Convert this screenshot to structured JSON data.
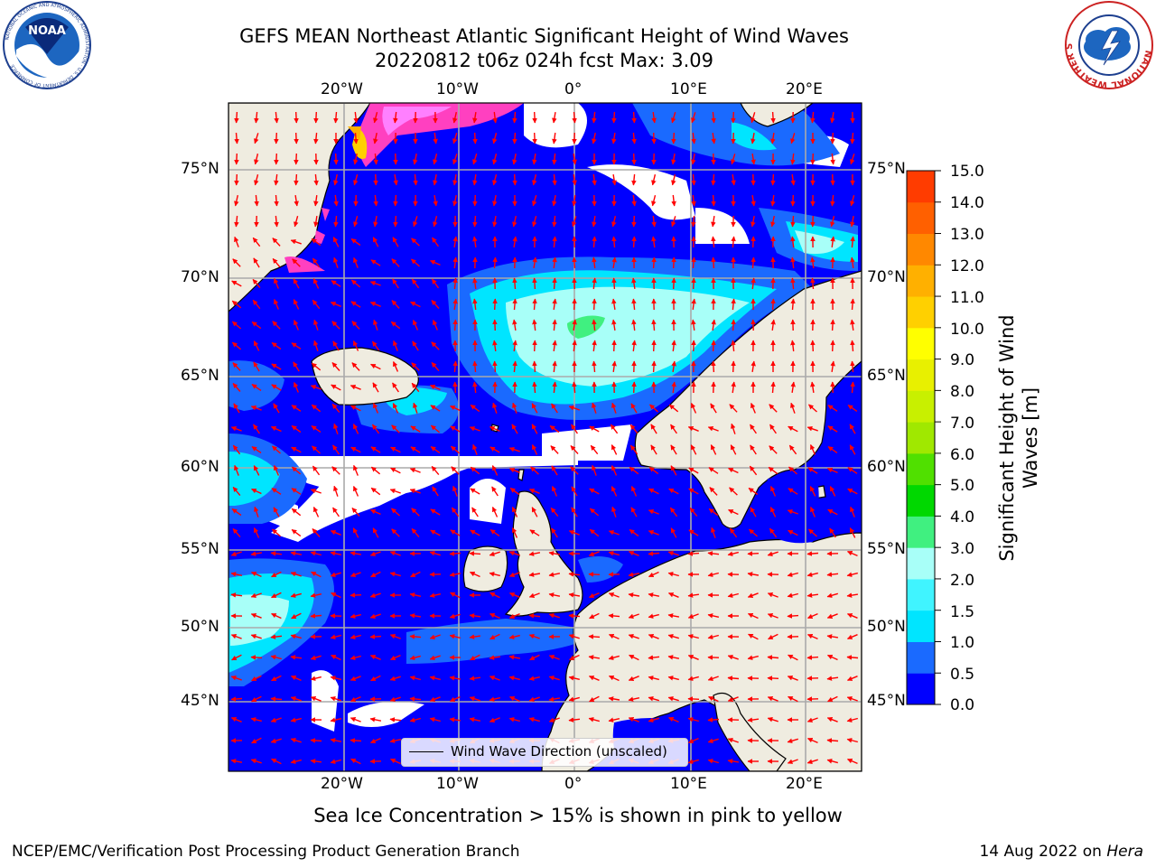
{
  "title": {
    "line1": "GEFS MEAN Northeast Atlantic Significant Height of Wind Waves",
    "line2": "20220812 t06z 024h fcst   Max: 3.09"
  },
  "logos": {
    "noara_text": "NOAA",
    "noaa_ring_text": "NATIONAL OCEANIC AND ATMOSPHERIC ADMINISTRATION · U.S. DEPARTMENT OF COMMERCE",
    "nws_ring_text": "NATIONAL WEATHER SERVICE"
  },
  "axes": {
    "top_lon": [
      "20°W",
      "10°W",
      "0°",
      "10°E",
      "20°E"
    ],
    "bottom_lon": [
      "20°W",
      "10°W",
      "0°",
      "10°E",
      "20°E"
    ],
    "left_lat": [
      "75°N",
      "70°N",
      "65°N",
      "60°N",
      "55°N",
      "50°N",
      "45°N"
    ],
    "right_lat": [
      "75°N",
      "70°N",
      "65°N",
      "60°N",
      "55°N",
      "50°N",
      "45°N"
    ]
  },
  "legend": {
    "label": "Wind Wave Direction (unscaled)"
  },
  "colorbar": {
    "label_line1": "Significant Height of Wind",
    "label_line2": "Waves [m]",
    "ticks": [
      "15.0",
      "14.0",
      "13.0",
      "12.0",
      "11.0",
      "10.0",
      "9.0",
      "8.0",
      "7.0",
      "6.0",
      "5.0",
      "4.0",
      "3.0",
      "2.0",
      "1.5",
      "1.0",
      "0.5",
      "0.0"
    ],
    "colors": [
      "#0000ff",
      "#1a6aff",
      "#00e5ff",
      "#40f4ff",
      "#a8fff8",
      "#40f080",
      "#00d800",
      "#50e000",
      "#a0e800",
      "#c8f000",
      "#e8f000",
      "#ffff00",
      "#ffd000",
      "#ffb000",
      "#ff8800",
      "#ff6000",
      "#ff3c00",
      "#ff0000"
    ]
  },
  "caption": "Sea Ice Concentration > 15% is shown in pink to yellow",
  "footer": {
    "left": "NCEP/EMC/Verification Post Processing Product Generation Branch",
    "date": "14 Aug 2022 on",
    "machine": "Hera"
  },
  "map": {
    "field": "Significant Height of Wind Waves",
    "units": "m",
    "max_value": 3.09,
    "region": "Northeast Atlantic",
    "extent": {
      "lon": [
        -30,
        25
      ],
      "lat": [
        41,
        78
      ]
    },
    "colors": {
      "land": "#efece0",
      "no_data": "#ffffff",
      "sea_ice": "#ff40c0",
      "arrow": "#ff0000",
      "grid": "#aaaaaa",
      "coast": "#000000"
    }
  }
}
